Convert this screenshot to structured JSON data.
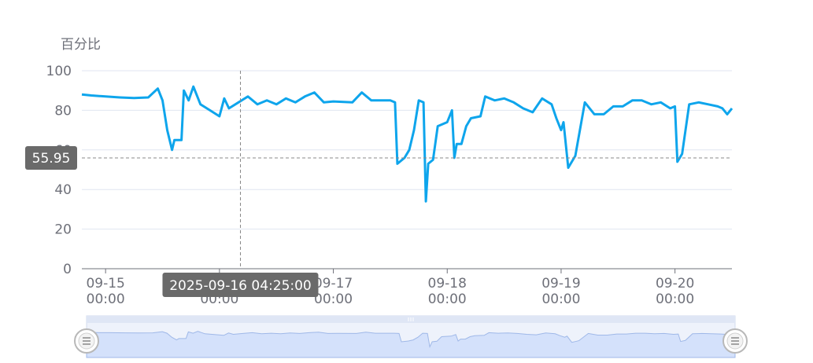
{
  "chart_data": {
    "type": "line",
    "title": "",
    "ylabel": "百分比",
    "ylim": [
      0,
      100
    ],
    "y_ticks": [
      0,
      20,
      40,
      60,
      80,
      100
    ],
    "x_ticks": [
      {
        "x": "2025-09-15 00:00",
        "date": "09-15",
        "time": "00:00"
      },
      {
        "x": "2025-09-16 00:00",
        "date": "09-16",
        "time": "00:00"
      },
      {
        "x": "2025-09-17 00:00",
        "date": "09-17",
        "time": "00:00"
      },
      {
        "x": "2025-09-18 00:00",
        "date": "09-18",
        "time": "00:00"
      },
      {
        "x": "2025-09-19 00:00",
        "date": "09-19",
        "time": "00:00"
      },
      {
        "x": "2025-09-20 00:00",
        "date": "09-20",
        "time": "00:00"
      }
    ],
    "xlim": [
      "2025-09-14 19:00",
      "2025-09-20 12:00"
    ],
    "grid": true,
    "legend": "none",
    "series": [
      {
        "color": "#0ea5ec",
        "points": [
          [
            "2025-09-14 19:00",
            88
          ],
          [
            "2025-09-14 21:00",
            87.5
          ],
          [
            "2025-09-15 00:00",
            87
          ],
          [
            "2025-09-15 03:00",
            86.5
          ],
          [
            "2025-09-15 06:00",
            86.2
          ],
          [
            "2025-09-15 09:00",
            86.5
          ],
          [
            "2025-09-15 11:00",
            91
          ],
          [
            "2025-09-15 12:00",
            85
          ],
          [
            "2025-09-15 13:00",
            70
          ],
          [
            "2025-09-15 14:00",
            60
          ],
          [
            "2025-09-15 14:30",
            65
          ],
          [
            "2025-09-15 16:00",
            65
          ],
          [
            "2025-09-15 16:30",
            90
          ],
          [
            "2025-09-15 17:30",
            85
          ],
          [
            "2025-09-15 18:30",
            92
          ],
          [
            "2025-09-15 20:00",
            83
          ],
          [
            "2025-09-15 22:00",
            80
          ],
          [
            "2025-09-16 00:00",
            77
          ],
          [
            "2025-09-16 01:00",
            86
          ],
          [
            "2025-09-16 02:00",
            81
          ],
          [
            "2025-09-16 04:00",
            84
          ],
          [
            "2025-09-16 06:00",
            87
          ],
          [
            "2025-09-16 08:00",
            83
          ],
          [
            "2025-09-16 10:00",
            85
          ],
          [
            "2025-09-16 12:00",
            83
          ],
          [
            "2025-09-16 14:00",
            86
          ],
          [
            "2025-09-16 16:00",
            84
          ],
          [
            "2025-09-16 18:00",
            87
          ],
          [
            "2025-09-16 20:00",
            89
          ],
          [
            "2025-09-16 22:00",
            84
          ],
          [
            "2025-09-17 00:00",
            84.5
          ],
          [
            "2025-09-17 04:00",
            84
          ],
          [
            "2025-09-17 06:00",
            89
          ],
          [
            "2025-09-17 08:00",
            85
          ],
          [
            "2025-09-17 12:00",
            85
          ],
          [
            "2025-09-17 13:00",
            84
          ],
          [
            "2025-09-17 13:30",
            53
          ],
          [
            "2025-09-17 15:00",
            56
          ],
          [
            "2025-09-17 16:00",
            60
          ],
          [
            "2025-09-17 17:00",
            70
          ],
          [
            "2025-09-17 18:00",
            85
          ],
          [
            "2025-09-17 19:00",
            84
          ],
          [
            "2025-09-17 19:30",
            34
          ],
          [
            "2025-09-17 20:00",
            53
          ],
          [
            "2025-09-17 21:00",
            55
          ],
          [
            "2025-09-17 22:00",
            72
          ],
          [
            "2025-09-18 00:00",
            74
          ],
          [
            "2025-09-18 01:00",
            80
          ],
          [
            "2025-09-18 01:30",
            56
          ],
          [
            "2025-09-18 02:00",
            63
          ],
          [
            "2025-09-18 03:00",
            63
          ],
          [
            "2025-09-18 04:00",
            72
          ],
          [
            "2025-09-18 05:00",
            76
          ],
          [
            "2025-09-18 07:00",
            77
          ],
          [
            "2025-09-18 08:00",
            87
          ],
          [
            "2025-09-18 10:00",
            85
          ],
          [
            "2025-09-18 12:00",
            86
          ],
          [
            "2025-09-18 14:00",
            84
          ],
          [
            "2025-09-18 16:00",
            81
          ],
          [
            "2025-09-18 18:00",
            79
          ],
          [
            "2025-09-18 20:00",
            86
          ],
          [
            "2025-09-18 22:00",
            83
          ],
          [
            "2025-09-18 23:00",
            76
          ],
          [
            "2025-09-19 00:00",
            70
          ],
          [
            "2025-09-19 00:30",
            74
          ],
          [
            "2025-09-19 01:30",
            51
          ],
          [
            "2025-09-19 02:30",
            55
          ],
          [
            "2025-09-19 03:00",
            57
          ],
          [
            "2025-09-19 05:00",
            84
          ],
          [
            "2025-09-19 07:00",
            78
          ],
          [
            "2025-09-19 09:00",
            78
          ],
          [
            "2025-09-19 11:00",
            82
          ],
          [
            "2025-09-19 13:00",
            82
          ],
          [
            "2025-09-19 15:00",
            85
          ],
          [
            "2025-09-19 17:00",
            85
          ],
          [
            "2025-09-19 19:00",
            83
          ],
          [
            "2025-09-19 21:00",
            84
          ],
          [
            "2025-09-19 23:00",
            81
          ],
          [
            "2025-09-20 00:00",
            82
          ],
          [
            "2025-09-20 00:30",
            54
          ],
          [
            "2025-09-20 01:30",
            58
          ],
          [
            "2025-09-20 03:00",
            83
          ],
          [
            "2025-09-20 05:00",
            84
          ],
          [
            "2025-09-20 07:00",
            83
          ],
          [
            "2025-09-20 09:00",
            82
          ],
          [
            "2025-09-20 10:00",
            81
          ],
          [
            "2025-09-20 11:00",
            78
          ],
          [
            "2025-09-20 12:00",
            81
          ]
        ]
      }
    ],
    "axis_pointer": {
      "x_label": "2025-09-16 04:25:00",
      "x": "2025-09-16 04:25",
      "y_label": "55.95",
      "y": 55.95
    },
    "data_zoom": {
      "start": 0,
      "end": 100
    }
  },
  "colors": {
    "line": "#0ea5ec",
    "grid": "#e0e6f1",
    "axis": "#6e7079",
    "pointer": "#888888",
    "tooltip_bg": "#6a6a6a",
    "zoom_fill": "#d4e1fb",
    "zoom_border": "#d2dbee"
  }
}
